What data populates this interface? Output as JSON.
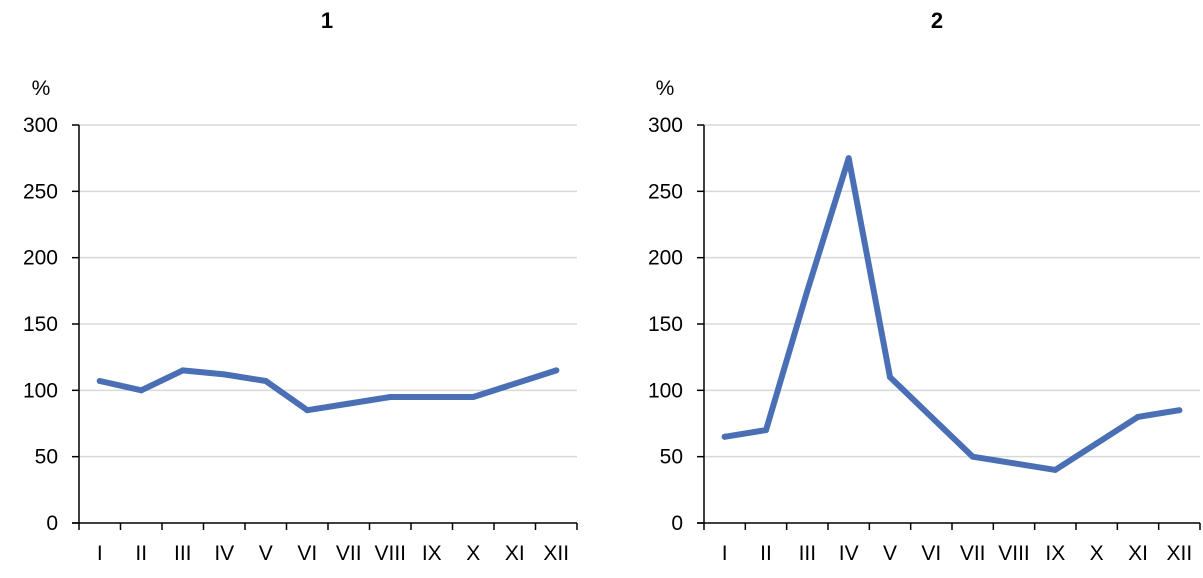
{
  "chart_data": [
    {
      "type": "line",
      "title": "1",
      "ylabel": "%",
      "xlabel": "",
      "categories": [
        "I",
        "II",
        "III",
        "IV",
        "V",
        "VI",
        "VII",
        "VIII",
        "IX",
        "X",
        "XI",
        "XII"
      ],
      "series": [
        {
          "values": [
            107,
            100,
            115,
            112,
            107,
            85,
            90,
            95,
            95,
            95,
            105,
            115
          ]
        }
      ],
      "ylim": [
        0,
        300
      ],
      "yticks": [
        0,
        50,
        100,
        150,
        200,
        250,
        300
      ],
      "grid": true,
      "line_color": "#4a6fb5",
      "grid_color": "#d9d9d9"
    },
    {
      "type": "line",
      "title": "2",
      "ylabel": "%",
      "xlabel": "",
      "categories": [
        "I",
        "II",
        "III",
        "IV",
        "V",
        "VI",
        "VII",
        "VIII",
        "IX",
        "X",
        "XI",
        "XII"
      ],
      "series": [
        {
          "values": [
            65,
            70,
            175,
            275,
            110,
            80,
            50,
            45,
            40,
            60,
            80,
            85
          ]
        }
      ],
      "ylim": [
        0,
        300
      ],
      "yticks": [
        0,
        50,
        100,
        150,
        200,
        250,
        300
      ],
      "grid": true,
      "line_color": "#4a6fb5",
      "grid_color": "#d9d9d9"
    }
  ]
}
